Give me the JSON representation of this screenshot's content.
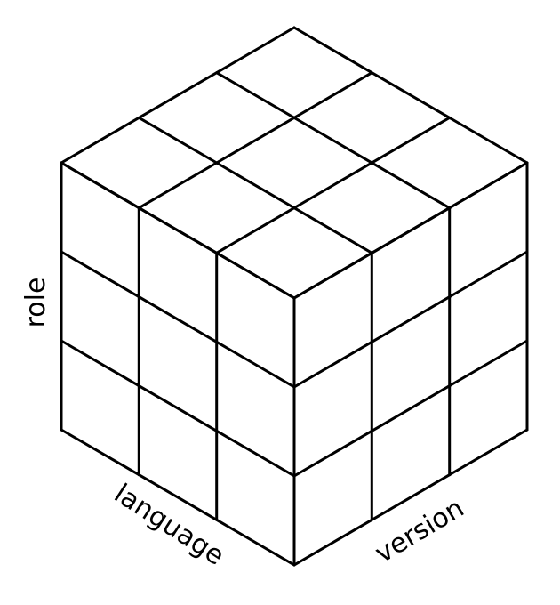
{
  "axes": {
    "vertical": "role",
    "front_left": "language",
    "front_right": "version"
  },
  "grid": {
    "divisions": 3
  },
  "colors": {
    "stroke": "#000000",
    "background": "#ffffff"
  }
}
